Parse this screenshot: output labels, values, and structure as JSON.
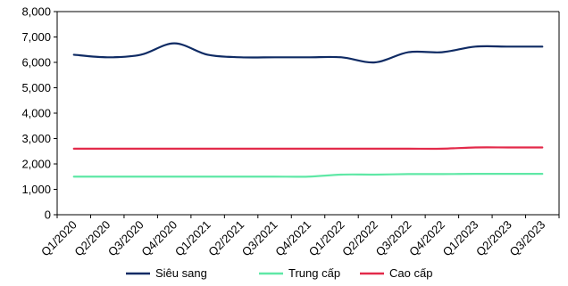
{
  "chart_data": {
    "type": "line",
    "categories": [
      "Q1/2020",
      "Q2/2020",
      "Q3/2020",
      "Q4/2020",
      "Q1/2021",
      "Q2/2021",
      "Q3/2021",
      "Q4/2021",
      "Q1/2022",
      "Q2/2022",
      "Q3/2022",
      "Q4/2022",
      "Q1/2023",
      "Q2/2023",
      "Q3/2023"
    ],
    "series": [
      {
        "name": "Siêu sang",
        "color": "#0f2b64",
        "values": [
          6300,
          6200,
          6300,
          6750,
          6300,
          6200,
          6200,
          6200,
          6200,
          6000,
          6400,
          6400,
          6620,
          6620,
          6620
        ]
      },
      {
        "name": "Trung cấp",
        "color": "#5fe8a6",
        "values": [
          1500,
          1500,
          1500,
          1500,
          1500,
          1500,
          1500,
          1500,
          1580,
          1580,
          1600,
          1600,
          1610,
          1610,
          1610
        ]
      },
      {
        "name": "Cao cấp",
        "color": "#e32a4a",
        "values": [
          2600,
          2600,
          2600,
          2600,
          2600,
          2600,
          2600,
          2600,
          2600,
          2600,
          2600,
          2600,
          2650,
          2650,
          2650
        ]
      }
    ],
    "ylim": [
      0,
      8000
    ],
    "yticks": [
      "0",
      "1,000",
      "2,000",
      "3,000",
      "4,000",
      "5,000",
      "6,000",
      "7,000",
      "8,000"
    ],
    "ytick_values": [
      0,
      1000,
      2000,
      3000,
      4000,
      5000,
      6000,
      7000,
      8000
    ],
    "grid": false,
    "legend_position": "bottom-center"
  }
}
